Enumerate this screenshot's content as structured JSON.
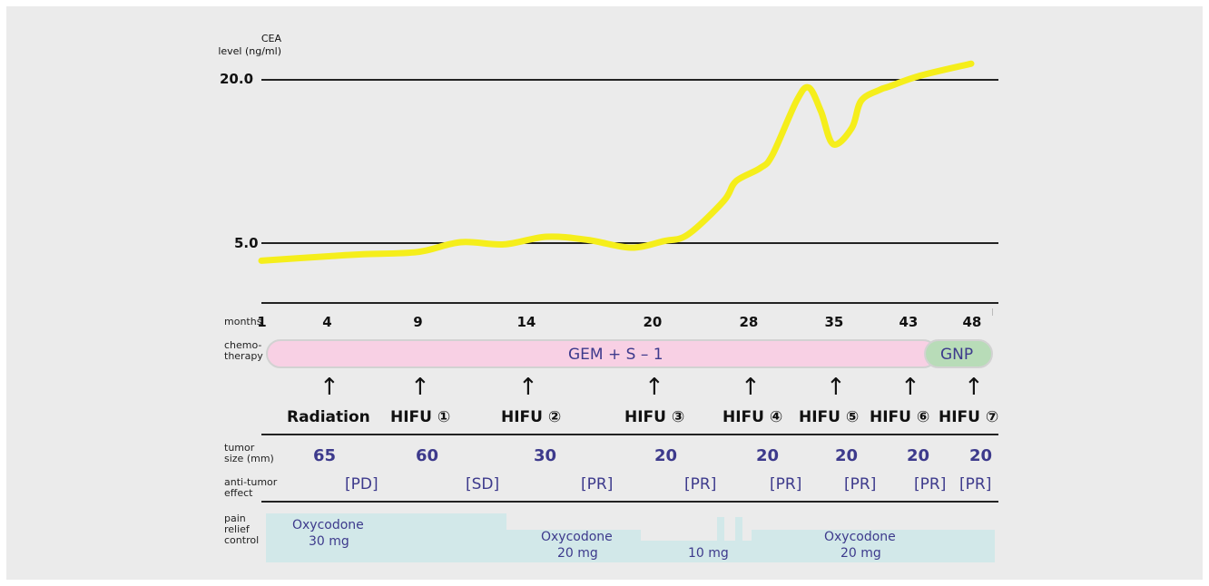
{
  "chart_data": {
    "type": "line",
    "ylabel_line1": "CEA",
    "ylabel_line2": "level (ng/ml)",
    "y_reference_lines": [
      {
        "value": 20.0,
        "label": "20.0"
      },
      {
        "value": 5.0,
        "label": "5.0"
      }
    ],
    "xlim": [
      1,
      48
    ],
    "x_axis_title": "months",
    "x_ticks": [
      "1",
      "4",
      "9",
      "14",
      "20",
      "28",
      "35",
      "43",
      "48"
    ],
    "x_tick_values": [
      1,
      4,
      9,
      14,
      20,
      28,
      35,
      43,
      48
    ],
    "series": [
      {
        "color": "#f5ee1b",
        "x": [
          1,
          4,
          6,
          9,
          11,
          13,
          15,
          17,
          19,
          21,
          23,
          26,
          27,
          29,
          30,
          32,
          33,
          34,
          35,
          37,
          38,
          40,
          41,
          44,
          48
        ],
        "y": [
          3.3,
          3.7,
          3.9,
          4.1,
          5.0,
          4.8,
          5.5,
          5.2,
          4.5,
          5.1,
          5.7,
          8.8,
          10.6,
          11.8,
          13.0,
          18.0,
          19.2,
          17.0,
          14.0,
          15.5,
          18.0,
          19.0,
          19.3,
          20.3,
          21.4
        ]
      }
    ]
  },
  "rows": {
    "chemo_label": "chemo-\ntherapy",
    "chemo_gem": "GEM + S – 1",
    "chemo_gnp": "GNP",
    "tumor_label": "tumor\nsize (mm)",
    "effect_label": "anti-tumor\neffect",
    "pain_label": "pain\nrelief\ncontrol"
  },
  "events": [
    {
      "label": "Radiation",
      "month": 4
    },
    {
      "label": "HIFU ①",
      "month": 9
    },
    {
      "label": "HIFU ②",
      "month": 14
    },
    {
      "label": "HIFU ③",
      "month": 20
    },
    {
      "label": "HIFU ④",
      "month": 28
    },
    {
      "label": "HIFU ⑤",
      "month": 35
    },
    {
      "label": "HIFU ⑥",
      "month": 43
    },
    {
      "label": "HIFU ⑦",
      "month": 48
    }
  ],
  "tumor_sizes": [
    {
      "month": 4,
      "value": "65"
    },
    {
      "month": 9,
      "value": "60"
    },
    {
      "month": 14,
      "value": "30"
    },
    {
      "month": 20,
      "value": "20"
    },
    {
      "month": 28,
      "value": "20"
    },
    {
      "month": 35,
      "value": "20"
    },
    {
      "month": 43,
      "value": "20"
    },
    {
      "month": 48,
      "value": "20"
    }
  ],
  "effects": [
    "[PD]",
    "[SD]",
    "[PR]",
    "[PR]",
    "[PR]",
    "[PR]",
    "[PR]",
    "[PR]"
  ],
  "pain": [
    {
      "drug": "Oxycodone",
      "dose": "30 mg"
    },
    {
      "drug": "Oxycodone",
      "dose": "20 mg"
    },
    {
      "drug": "",
      "dose": "10 mg"
    },
    {
      "drug": "Oxycodone",
      "dose": "20 mg"
    }
  ],
  "colors": {
    "curve": "#f5ee1b",
    "chemo_pink": "#f8d0e4",
    "chemo_green": "#b8dcb8",
    "pain_band": "#d2e8e9",
    "blue_text": "#3d3a8c"
  }
}
